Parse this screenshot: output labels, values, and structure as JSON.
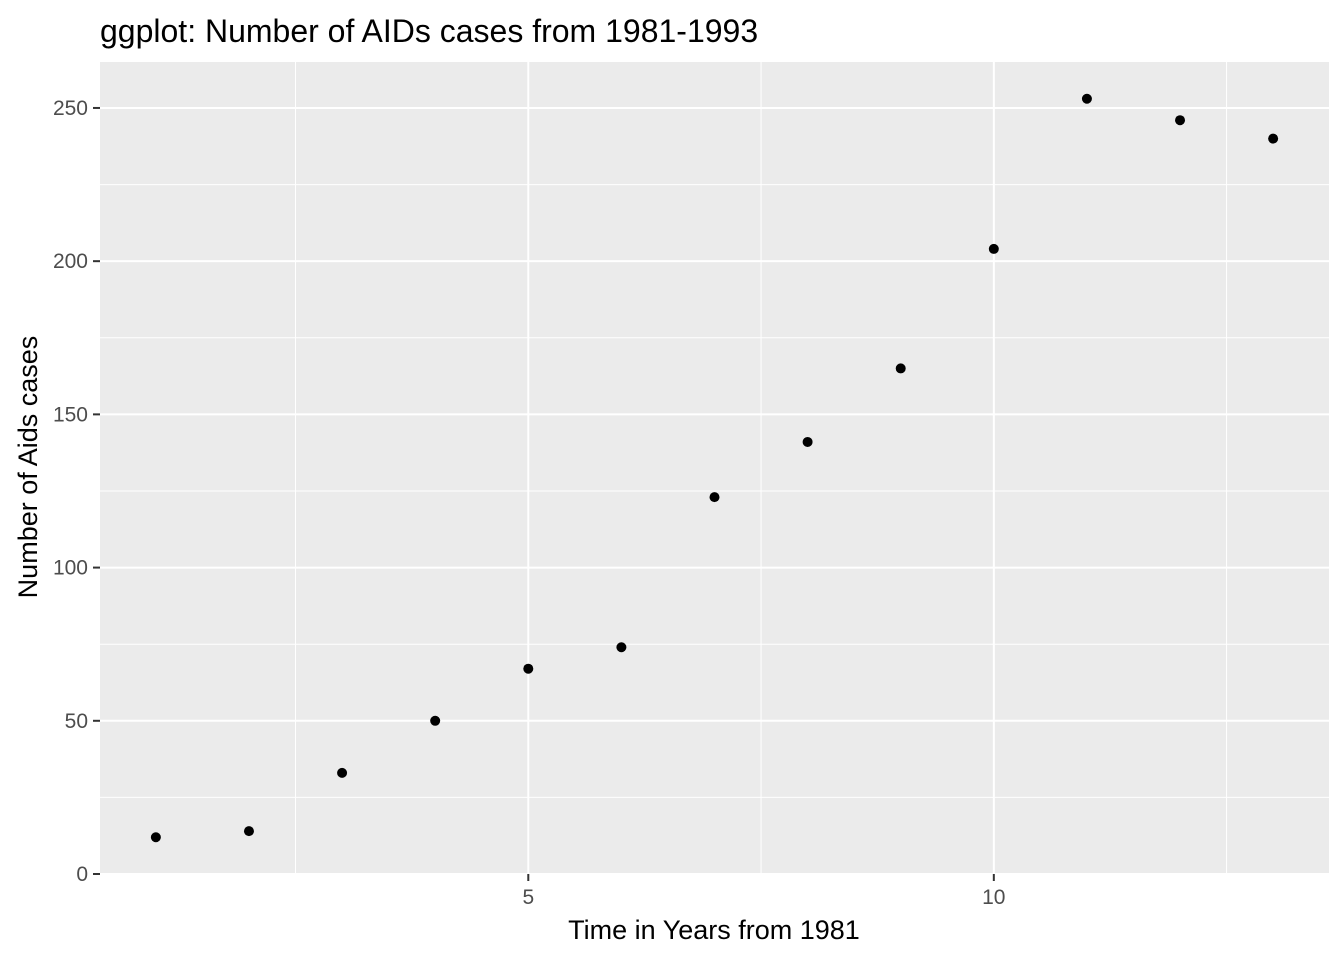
{
  "chart_data": {
    "type": "scatter",
    "title": "ggplot: Number of AIDs cases from 1981-1993",
    "xlabel": "Time in Years from 1981",
    "ylabel": "Number of Aids cases",
    "x": [
      1,
      2,
      3,
      4,
      5,
      6,
      7,
      8,
      9,
      10,
      11,
      12,
      13
    ],
    "y": [
      12,
      14,
      33,
      50,
      67,
      74,
      123,
      141,
      165,
      204,
      253,
      246,
      240
    ],
    "xlim": [
      0.4,
      13.6
    ],
    "ylim": [
      0,
      265
    ],
    "x_ticks": [
      5,
      10
    ],
    "x_tick_labels": [
      "5",
      "10"
    ],
    "y_ticks": [
      0,
      50,
      100,
      150,
      200,
      250
    ],
    "y_tick_labels": [
      "0",
      "50",
      "100",
      "150",
      "200",
      "250"
    ],
    "grid": true,
    "panel_background": "#ebebeb",
    "grid_color": "#ffffff",
    "point_color": "#000000"
  }
}
